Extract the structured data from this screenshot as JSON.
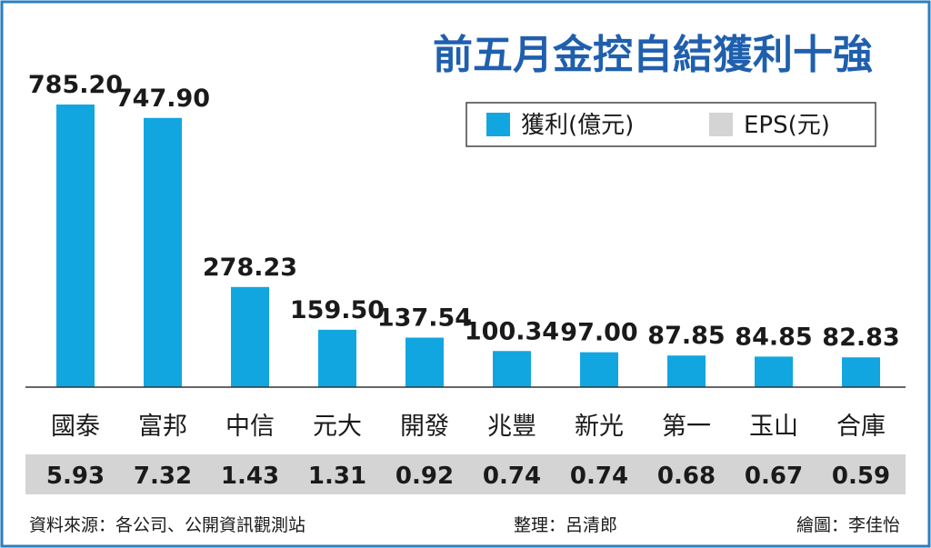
{
  "chart_data": {
    "type": "bar",
    "title": "前五月金控自結獲利十強",
    "categories": [
      "國泰",
      "富邦",
      "中信",
      "元大",
      "開發",
      "兆豐",
      "新光",
      "第一",
      "玉山",
      "合庫"
    ],
    "series": [
      {
        "name": "獲利(億元)",
        "values": [
          785.2,
          747.9,
          278.23,
          159.5,
          137.54,
          100.34,
          97.0,
          87.85,
          84.85,
          82.83
        ]
      },
      {
        "name": "EPS(元)",
        "values": [
          5.93,
          7.32,
          1.43,
          1.31,
          0.92,
          0.74,
          0.74,
          0.68,
          0.67,
          0.59
        ]
      }
    ],
    "value_labels": [
      "785.20",
      "747.90",
      "278.23",
      "159.50",
      "137.54",
      "100.34",
      "97.00",
      "87.85",
      "84.85",
      "82.83"
    ],
    "eps_labels": [
      "5.93",
      "7.32",
      "1.43",
      "1.31",
      "0.92",
      "0.74",
      "0.74",
      "0.68",
      "0.67",
      "0.59"
    ],
    "legend": {
      "placement": "top-right",
      "items": [
        {
          "label": "獲利(億元)",
          "color": "#12a6e0"
        },
        {
          "label": "EPS(元)",
          "color": "#d4d4d4"
        }
      ]
    },
    "ylim": [
      0,
      785.2
    ],
    "grid": false
  },
  "colors": {
    "bar": "#12a6e0",
    "title": "#1f5fae",
    "eps_band": "#d4d4d4",
    "frame": "#2a7fc1"
  },
  "footer": {
    "source": "資料來源：各公司、公開資訊觀測站",
    "editor": "整理：呂清郎",
    "artist": "繪圖：李佳怡"
  }
}
